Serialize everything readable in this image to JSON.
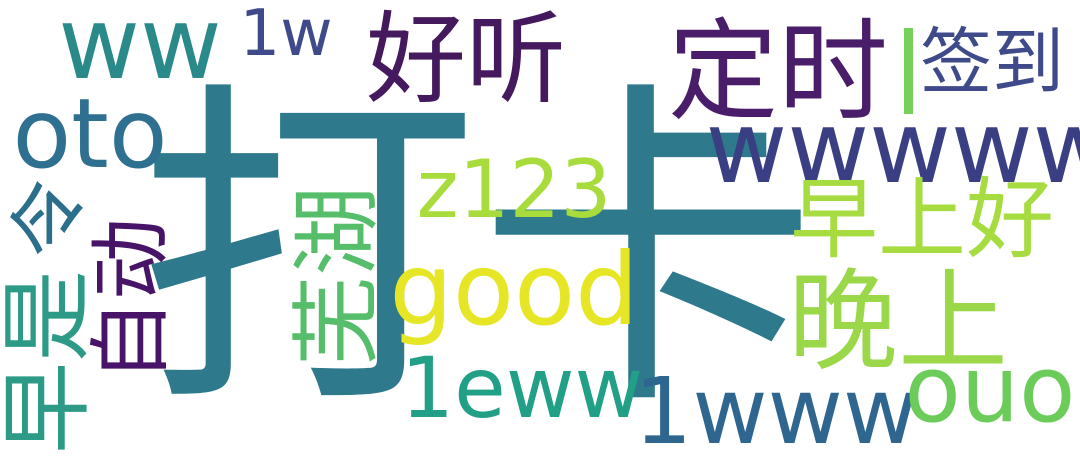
{
  "words": [
    {
      "id": "daka",
      "text": "打卡",
      "color": "#2e7a8c"
    },
    {
      "id": "ww",
      "text": "ww",
      "color": "#2a8a8a"
    },
    {
      "id": "1w",
      "text": "1w",
      "color": "#3f4a8a"
    },
    {
      "id": "haoting",
      "text": "好听",
      "color": "#44195e"
    },
    {
      "id": "dingshi",
      "text": "定时",
      "color": "#4a1d6b"
    },
    {
      "id": "qiandao",
      "text": "签到",
      "color": "#3f4a8a"
    },
    {
      "id": "oto",
      "text": "oto",
      "color": "#2f7090"
    },
    {
      "id": "wwwww",
      "text": "wwwww",
      "color": "#3a3f83"
    },
    {
      "id": "z123",
      "text": "z123",
      "color": "#a8dc3c"
    },
    {
      "id": "zaoshanghao",
      "text": "早上好",
      "color": "#a6dc40"
    },
    {
      "id": "ling",
      "text": "令",
      "color": "#2b6f8d"
    },
    {
      "id": "zidong",
      "text": "自动",
      "color": "#471468"
    },
    {
      "id": "zaoqi",
      "text": "早是",
      "color": "#2c9a86"
    },
    {
      "id": "wuhu",
      "text": "芜湖",
      "color": "#56be6b"
    },
    {
      "id": "good",
      "text": "good",
      "color": "#e6e626"
    },
    {
      "id": "wanshang",
      "text": "晚上",
      "color": "#9ad84a"
    },
    {
      "id": "leww",
      "text": "1eww",
      "color": "#219f87"
    },
    {
      "id": "1www",
      "text": "1www",
      "color": "#2f6690"
    },
    {
      "id": "ouo",
      "text": "ouo",
      "color": "#6bcc5a"
    },
    {
      "id": "bar",
      "text": "",
      "color": "#76d05a"
    }
  ]
}
